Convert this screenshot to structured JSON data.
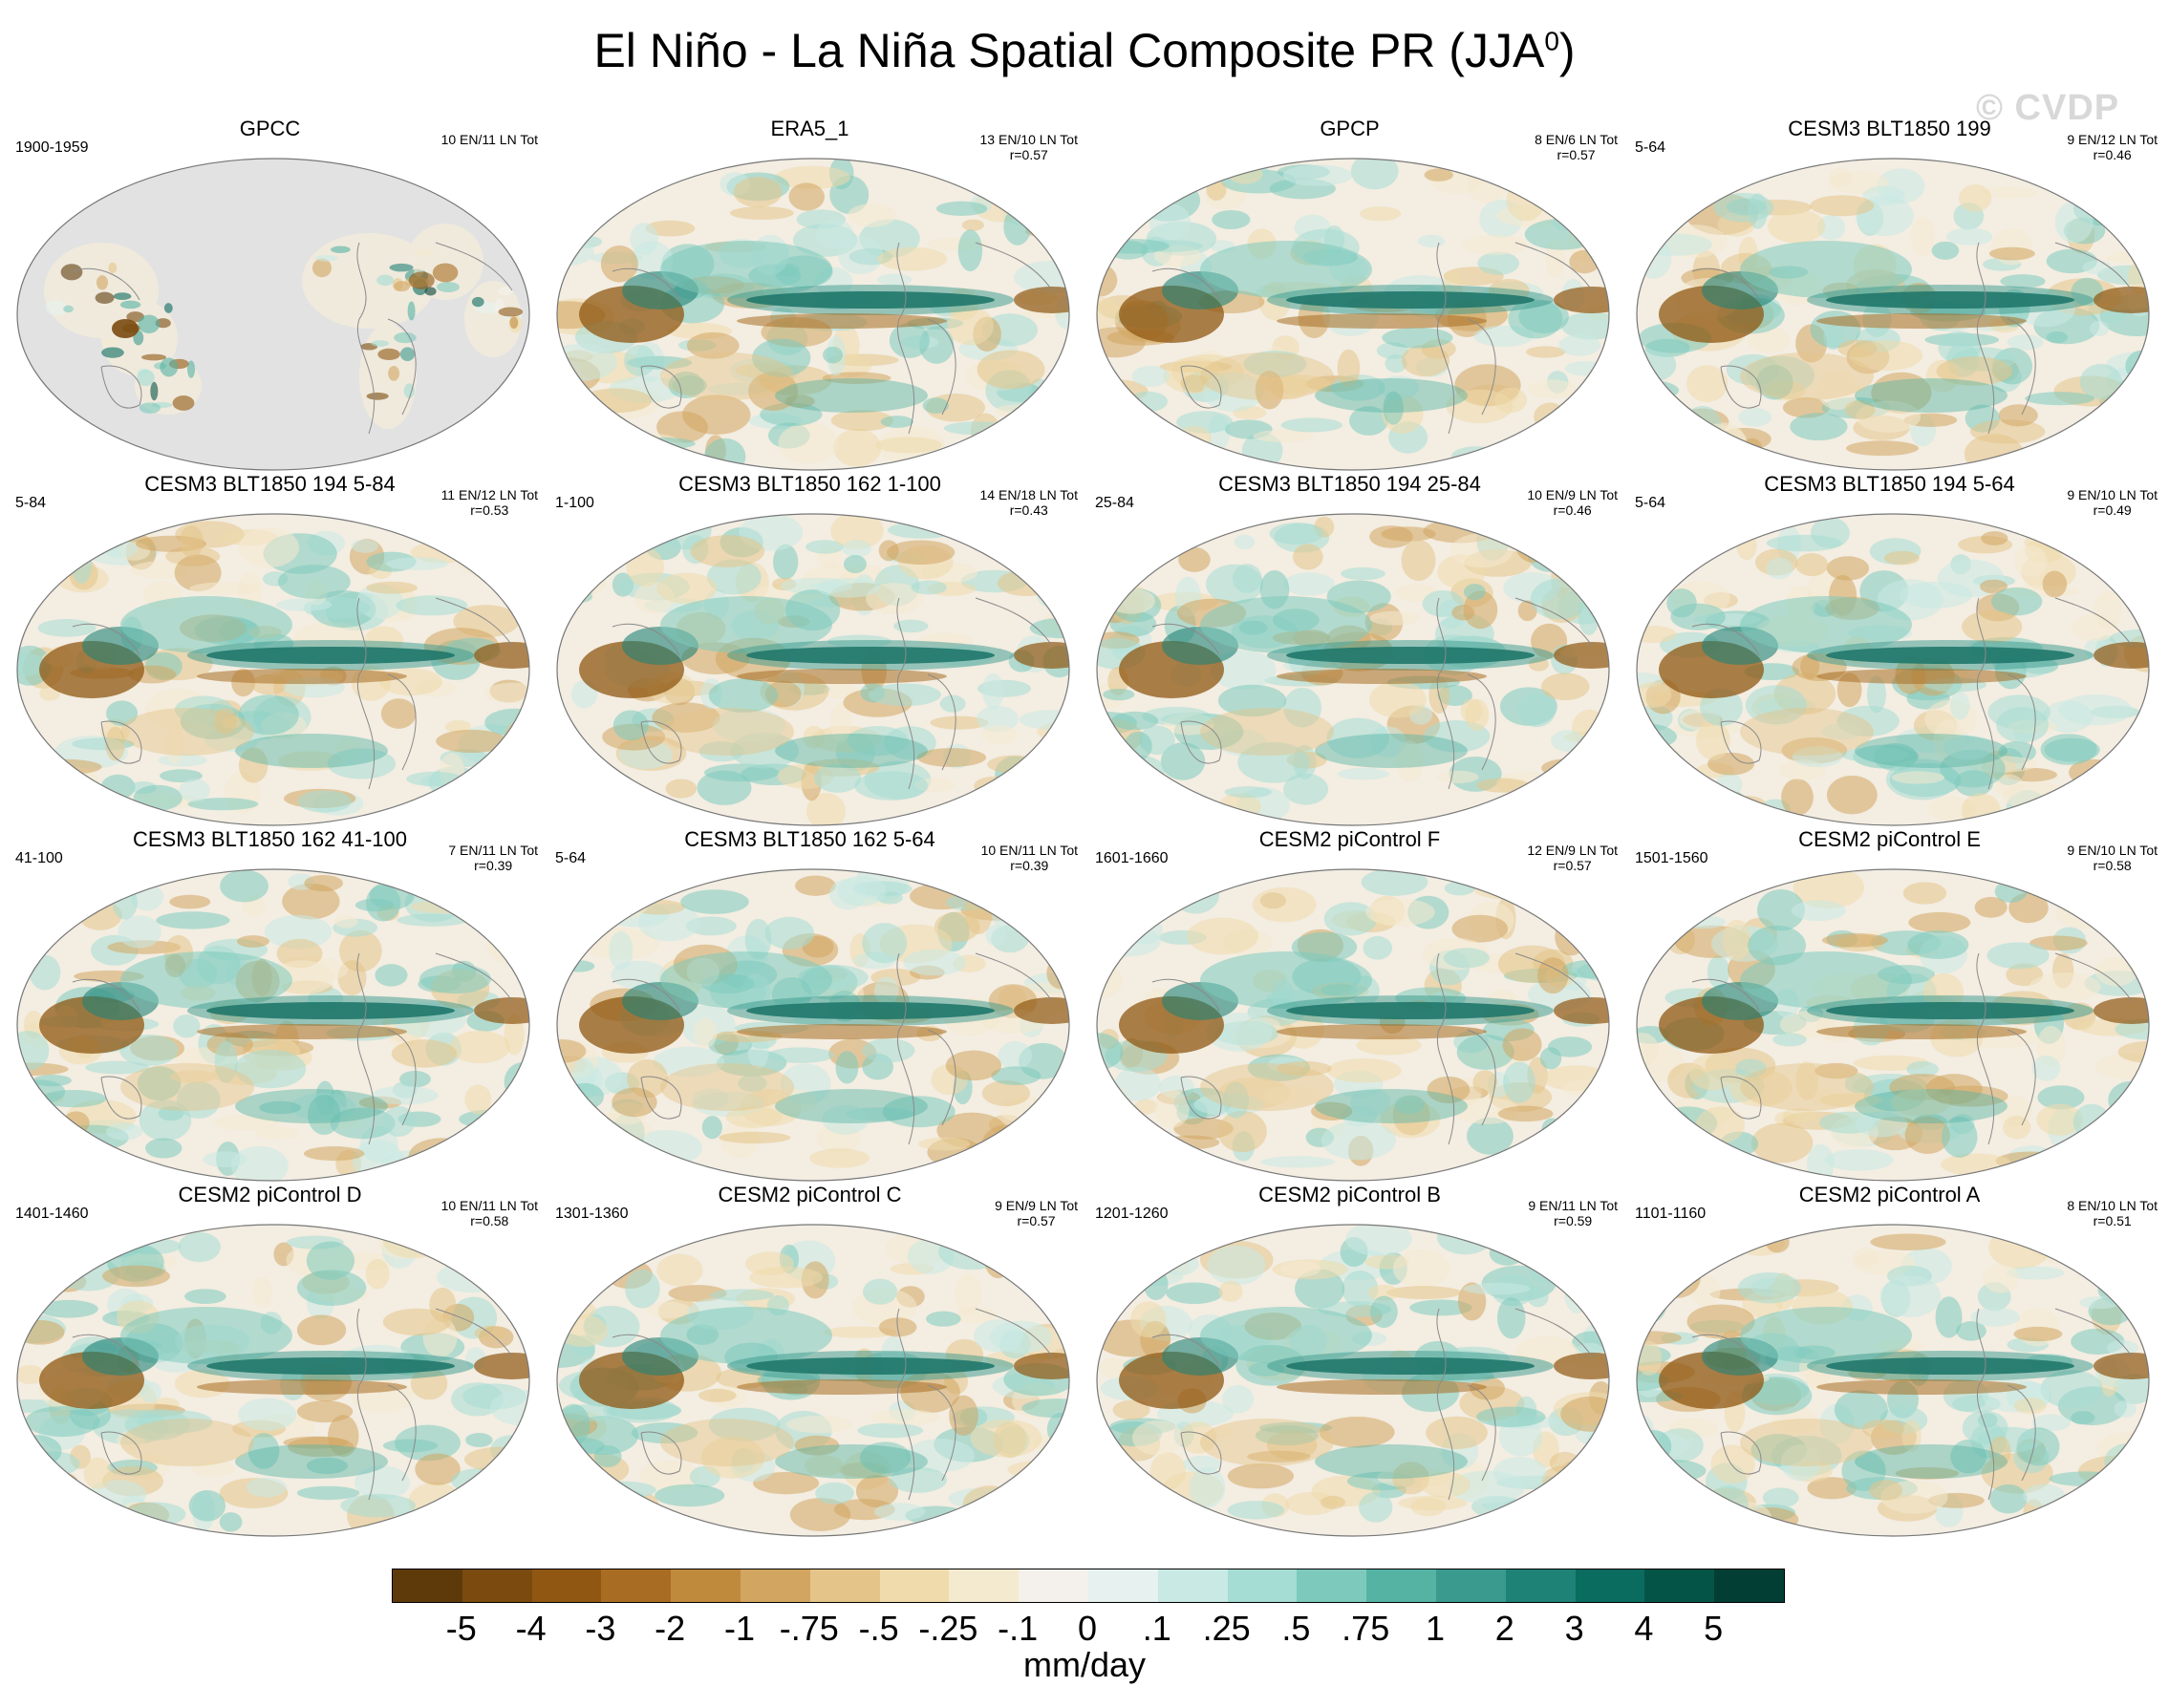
{
  "title": {
    "main": "El Niño - La Niña Spatial Composite PR (JJA",
    "sup": "0",
    "close": ")"
  },
  "watermark": "© CVDP",
  "panels": [
    {
      "title": "GPCC",
      "years": "1900-1959",
      "count": "10 EN/11 LN Tot",
      "r": "",
      "style": "obs_land"
    },
    {
      "title": "ERA5_1",
      "years": "",
      "count": "13 EN/10 LN Tot",
      "r": "r=0.57",
      "style": "full"
    },
    {
      "title": "GPCP",
      "years": "",
      "count": "8 EN/6 LN Tot",
      "r": "r=0.57",
      "style": "full"
    },
    {
      "title": "CESM3 BLT1850 199",
      "years": "5-64",
      "count": "9 EN/12 LN Tot",
      "r": "r=0.46",
      "style": "full"
    },
    {
      "title": "CESM3 BLT1850 194 5-84",
      "years": "5-84",
      "count": "11 EN/12 LN Tot",
      "r": "r=0.53",
      "style": "full"
    },
    {
      "title": "CESM3 BLT1850 162 1-100",
      "years": "1-100",
      "count": "14 EN/18 LN Tot",
      "r": "r=0.43",
      "style": "full"
    },
    {
      "title": "CESM3 BLT1850 194 25-84",
      "years": "25-84",
      "count": "10 EN/9 LN Tot",
      "r": "r=0.46",
      "style": "full"
    },
    {
      "title": "CESM3 BLT1850 194 5-64",
      "years": "5-64",
      "count": "9 EN/10 LN Tot",
      "r": "r=0.49",
      "style": "full"
    },
    {
      "title": "CESM3 BLT1850 162 41-100",
      "years": "41-100",
      "count": "7 EN/11 LN Tot",
      "r": "r=0.39",
      "style": "full"
    },
    {
      "title": "CESM3 BLT1850 162 5-64",
      "years": "5-64",
      "count": "10 EN/11 LN Tot",
      "r": "r=0.39",
      "style": "full"
    },
    {
      "title": "CESM2 piControl F",
      "years": "1601-1660",
      "count": "12 EN/9 LN Tot",
      "r": "r=0.57",
      "style": "full"
    },
    {
      "title": "CESM2 piControl E",
      "years": "1501-1560",
      "count": "9 EN/10 LN Tot",
      "r": "r=0.58",
      "style": "full"
    },
    {
      "title": "CESM2 piControl D",
      "years": "1401-1460",
      "count": "10 EN/11 LN Tot",
      "r": "r=0.58",
      "style": "full"
    },
    {
      "title": "CESM2 piControl C",
      "years": "1301-1360",
      "count": "9 EN/9 LN Tot",
      "r": "r=0.57",
      "style": "full"
    },
    {
      "title": "CESM2 piControl B",
      "years": "1201-1260",
      "count": "9 EN/11 LN Tot",
      "r": "r=0.59",
      "style": "full"
    },
    {
      "title": "CESM2 piControl A",
      "years": "1101-1160",
      "count": "8 EN/10 LN Tot",
      "r": "r=0.51",
      "style": "full"
    }
  ],
  "colorbar": {
    "colors": [
      "#5e3a0b",
      "#7a4a0e",
      "#8f5712",
      "#a86d22",
      "#c08a3c",
      "#d2a560",
      "#e4c488",
      "#efdbab",
      "#f4ead0",
      "#f4f1ec",
      "#e6f1f0",
      "#c8e9e4",
      "#a5dcd3",
      "#7dcabd",
      "#55b3a4",
      "#3a9a8d",
      "#1f8276",
      "#0a6b5f",
      "#055448",
      "#033e34"
    ],
    "ticks": [
      "-5",
      "-4",
      "-3",
      "-2",
      "-1",
      "-.75",
      "-.5",
      "-.25",
      "-.1",
      "0",
      ".1",
      ".25",
      ".5",
      ".75",
      "1",
      "2",
      "3",
      "4",
      "5"
    ],
    "units": "mm/day"
  }
}
